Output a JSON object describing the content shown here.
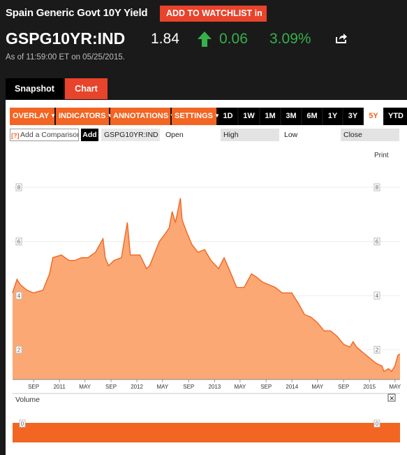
{
  "security": {
    "title": "Spain Generic Govt 10Y Yield",
    "watchlist_label": "ADD TO WATCHLIST",
    "watchlist_suffix": "in",
    "ticker": "GSPG10YR:IND",
    "price": "1.84",
    "change": "0.06",
    "change_pct": "3.09%",
    "direction": "up",
    "as_of": "As of 11:59:00 ET on 05/25/2015."
  },
  "tabs": [
    {
      "label": "Snapshot",
      "active": false
    },
    {
      "label": "Chart",
      "active": true
    }
  ],
  "toolbar": {
    "menus": [
      "OVERLAY",
      "INDICATORS",
      "ANNOTATIONS",
      "SETTINGS"
    ],
    "ranges": [
      "1D",
      "1W",
      "1M",
      "3M",
      "6M",
      "1Y",
      "3Y",
      "5Y",
      "YTD"
    ],
    "active_range": "5Y"
  },
  "compare": {
    "help": "[?]",
    "placeholder": "Add a Comparison",
    "add_label": "Add",
    "symbol": "GSPG10YR:IND",
    "open_label": "Open",
    "high_label": "High",
    "low_label": "Low",
    "close_label": "Close"
  },
  "chart": {
    "print_label": "Print",
    "volume_label": "Volume",
    "volume_close": "✕"
  },
  "colors": {
    "accent": "#f26522",
    "red": "#e8432b",
    "green": "#36b04a",
    "area_fill": "#fba874",
    "line": "#f26522"
  },
  "chart_data": {
    "type": "area",
    "y_ticks": [
      2,
      4,
      6,
      8
    ],
    "ylim": [
      0.9,
      8.8
    ],
    "x_labels": [
      {
        "label": "SEP",
        "date": "2010-09"
      },
      {
        "label": "2011",
        "date": "2011-01"
      },
      {
        "label": "MAY",
        "date": "2011-05"
      },
      {
        "label": "SEP",
        "date": "2011-09"
      },
      {
        "label": "2012",
        "date": "2012-01"
      },
      {
        "label": "MAY",
        "date": "2012-05"
      },
      {
        "label": "SEP",
        "date": "2012-09"
      },
      {
        "label": "2013",
        "date": "2013-01"
      },
      {
        "label": "MAY",
        "date": "2013-05"
      },
      {
        "label": "SEP",
        "date": "2013-09"
      },
      {
        "label": "2014",
        "date": "2014-01"
      },
      {
        "label": "MAY",
        "date": "2014-05"
      },
      {
        "label": "SEP",
        "date": "2014-09"
      },
      {
        "label": "2015",
        "date": "2015-01"
      },
      {
        "label": "MAY",
        "date": "2015-05"
      }
    ],
    "xlim": [
      "2010-05-25",
      "2015-05-25"
    ],
    "series": [
      {
        "x": [
          "2010-05-25",
          "2010-06-15",
          "2010-07-01",
          "2010-08-01",
          "2010-09-01",
          "2010-10-15",
          "2010-11-15",
          "2010-12-01",
          "2011-01-10",
          "2011-02-15",
          "2011-03-15",
          "2011-04-15",
          "2011-05-15",
          "2011-06-20",
          "2011-07-25",
          "2011-08-05",
          "2011-08-20",
          "2011-09-15",
          "2011-10-20",
          "2011-11-17",
          "2011-12-01",
          "2012-01-15",
          "2012-02-15",
          "2012-03-01",
          "2012-04-16",
          "2012-05-15",
          "2012-06-01",
          "2012-06-15",
          "2012-07-01",
          "2012-07-24",
          "2012-08-01",
          "2012-08-20",
          "2012-09-15",
          "2012-10-15",
          "2012-11-15",
          "2012-12-15",
          "2013-01-20",
          "2013-02-15",
          "2013-03-15",
          "2013-04-15",
          "2013-05-20",
          "2013-06-24",
          "2013-07-15",
          "2013-08-15",
          "2013-09-15",
          "2013-10-15",
          "2013-11-15",
          "2013-12-31",
          "2014-02-01",
          "2014-03-01",
          "2014-04-01",
          "2014-05-01",
          "2014-06-01",
          "2014-07-01",
          "2014-08-01",
          "2014-09-01",
          "2014-10-01",
          "2014-10-16",
          "2014-11-01",
          "2014-12-01",
          "2015-01-01",
          "2015-02-01",
          "2015-03-01",
          "2015-03-10",
          "2015-04-01",
          "2015-04-15",
          "2015-05-01",
          "2015-05-15",
          "2015-05-25"
        ],
        "y": [
          4.1,
          4.6,
          4.4,
          4.2,
          4.1,
          4.2,
          4.8,
          5.4,
          5.5,
          5.3,
          5.3,
          5.4,
          5.4,
          5.6,
          6.1,
          5.4,
          5.1,
          5.3,
          5.4,
          6.7,
          5.5,
          5.5,
          5.0,
          5.1,
          6.0,
          6.3,
          6.5,
          7.1,
          6.7,
          7.6,
          6.8,
          6.4,
          5.9,
          5.6,
          5.7,
          5.3,
          5.0,
          5.4,
          4.9,
          4.3,
          4.3,
          4.8,
          4.7,
          4.5,
          4.4,
          4.3,
          4.1,
          4.1,
          3.7,
          3.3,
          3.2,
          3.0,
          2.7,
          2.7,
          2.5,
          2.2,
          2.1,
          2.3,
          2.1,
          1.9,
          1.7,
          1.5,
          1.4,
          1.2,
          1.3,
          1.2,
          1.4,
          1.8,
          1.84
        ]
      }
    ],
    "volume": {
      "y_tick": 0
    }
  }
}
